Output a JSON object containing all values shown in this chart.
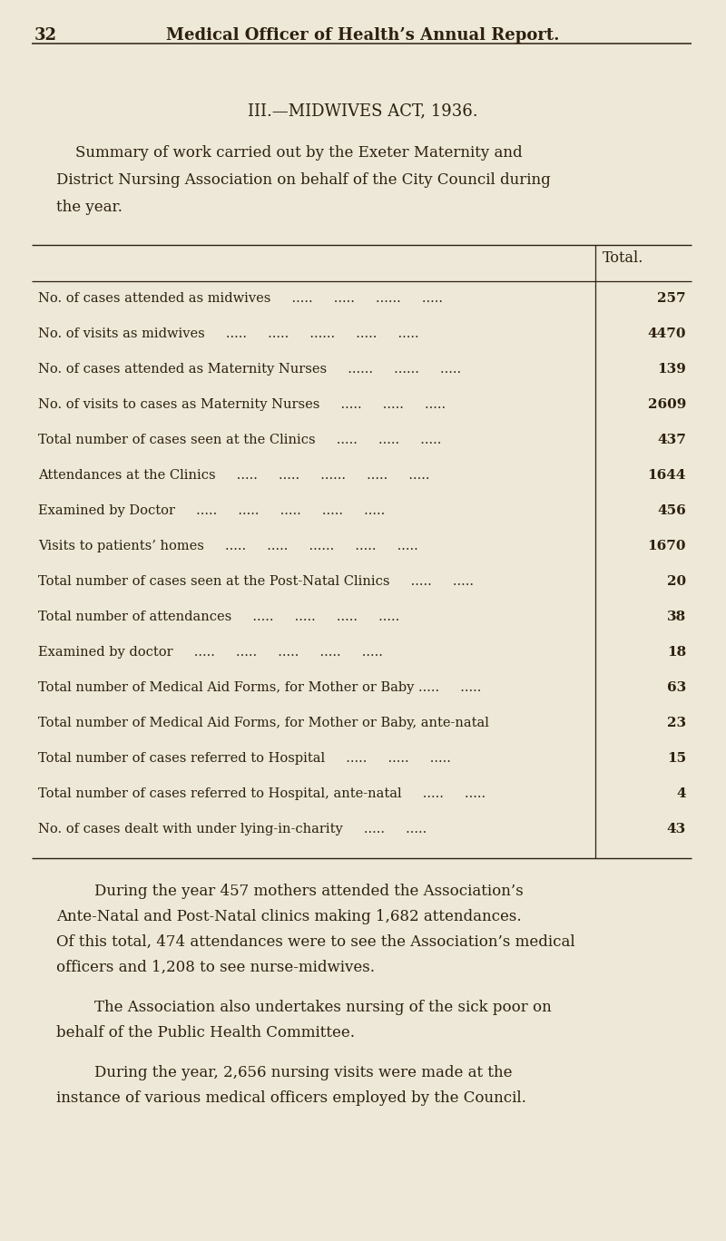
{
  "bg_color": "#ede8d8",
  "text_color": "#2e2010",
  "page_number": "32",
  "header_title": "Medical Officer of Health’s Annual Report.",
  "section_title": "III.—MIDWIVES ACT, 1936.",
  "summary_lines": [
    "    Summary of work carried out by the Exeter Maternity and",
    "District Nursing Association on behalf of the City Council during",
    "the year."
  ],
  "table_header": "Total.",
  "table_rows": [
    [
      "No. of cases attended as midwives     .....     .....     ......     .....",
      "257"
    ],
    [
      "No. of visits as midwives     .....     .....     ......     .....     .....",
      "4470"
    ],
    [
      "No. of cases attended as Maternity Nurses     ......     ......     .....",
      "139"
    ],
    [
      "No. of visits to cases as Maternity Nurses     .....     .....     .....",
      "2609"
    ],
    [
      "Total number of cases seen at the Clinics     .....     .....     .....",
      "437"
    ],
    [
      "Attendances at the Clinics     .....     .....     ......     .....     .....",
      "1644"
    ],
    [
      "Examined by Doctor     .....     .....     .....     .....     .....",
      "456"
    ],
    [
      "Visits to patients’ homes     .....     .....     ......     .....     .....",
      "1670"
    ],
    [
      "Total number of cases seen at the Post-Natal Clinics     .....     .....",
      "20"
    ],
    [
      "Total number of attendances     .....     .....     .....     .....",
      "38"
    ],
    [
      "Examined by doctor     .....     .....     .....     .....     .....",
      "18"
    ],
    [
      "Total number of Medical Aid Forms, for Mother or Baby .....     .....",
      "63"
    ],
    [
      "Total number of Medical Aid Forms, for Mother or Baby, ante-natal",
      "23"
    ],
    [
      "Total number of cases referred to Hospital     .....     .....     .....",
      "15"
    ],
    [
      "Total number of cases referred to Hospital, ante-natal     .....     .....",
      "4"
    ],
    [
      "No. of cases dealt with under lying-in-charity     .....     .....",
      "43"
    ]
  ],
  "footer_paragraphs": [
    [
      "        During the year 457 mothers attended the Association’s",
      "Ante-Natal and Post-Natal clinics making 1,682 attendances.",
      "Of this total, 474 attendances were to see the Association’s medical",
      "officers and 1,208 to see nurse-midwives."
    ],
    [
      "        The Association also undertakes nursing of the sick poor on",
      "behalf of the Public Health Committee."
    ],
    [
      "        During the year, 2,656 nursing visits were made at the",
      "instance of various medical officers employed by the Council."
    ]
  ]
}
